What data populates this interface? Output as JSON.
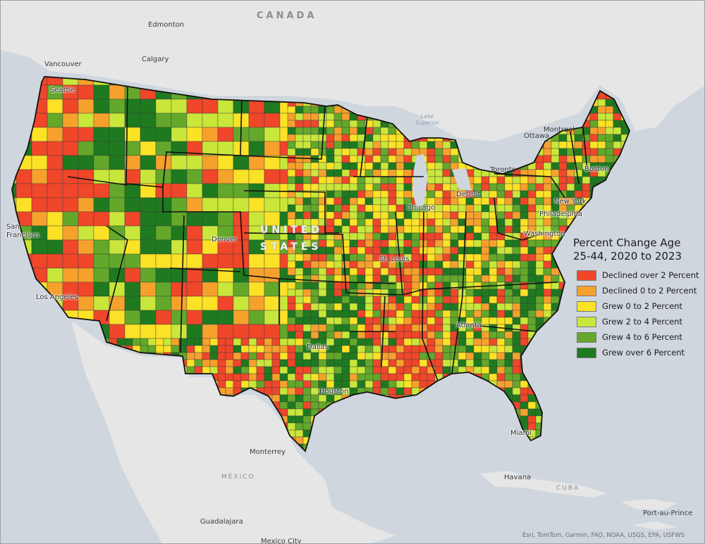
{
  "legend": {
    "title_line1": "Percent Change Age",
    "title_line2": "25-44, 2020 to 2023",
    "items": [
      {
        "label": "Declined over 2 Percent",
        "color": "#f0462a"
      },
      {
        "label": "Declined 0 to 2 Percent",
        "color": "#f7a12d"
      },
      {
        "label": "Grew 0 to 2 Percent",
        "color": "#fce226"
      },
      {
        "label": "Grew 2 to 4 Percent",
        "color": "#c9e73a"
      },
      {
        "label": "Grew 4 to 6 Percent",
        "color": "#63a82a"
      },
      {
        "label": "Grew over 6 Percent",
        "color": "#1f7a1f"
      }
    ]
  },
  "labels": {
    "countries": {
      "canada": "CANADA",
      "mexico": "MÉXICO",
      "cuba": "CUBA",
      "united": "UNITED",
      "states": "STATES"
    },
    "lake_line1": "Lake",
    "lake_line2": "Superior",
    "cities": {
      "edmonton": "Edmonton",
      "calgary": "Calgary",
      "vancouver": "Vancouver",
      "seattle": "Seattle",
      "ottawa": "Ottawa",
      "montreal": "Montreal",
      "toronto": "Toronto",
      "boston": "Boston",
      "detroit": "Detroit",
      "newyork": "New York",
      "chicago": "Chicago",
      "philadelphia": "Philadelphia",
      "washington": "Washington",
      "denver": "Denver",
      "sf_line1": "San",
      "sf_line2": "Francisco",
      "stlouis": "St. Louis",
      "losangeles": "Los Angeles",
      "atlanta": "Atlanta",
      "dallas": "Dallas",
      "houston": "Houston",
      "miami": "Miami",
      "monterrey": "Monterrey",
      "havana": "Havana",
      "portauprince": "Port-au-Prince",
      "guadalajara": "Guadalajara",
      "mexicocity": "Mexico City"
    }
  },
  "attribution": "Esri, TomTom, Garmin, FAO, NOAA, USGS, EPA, USFWS"
}
